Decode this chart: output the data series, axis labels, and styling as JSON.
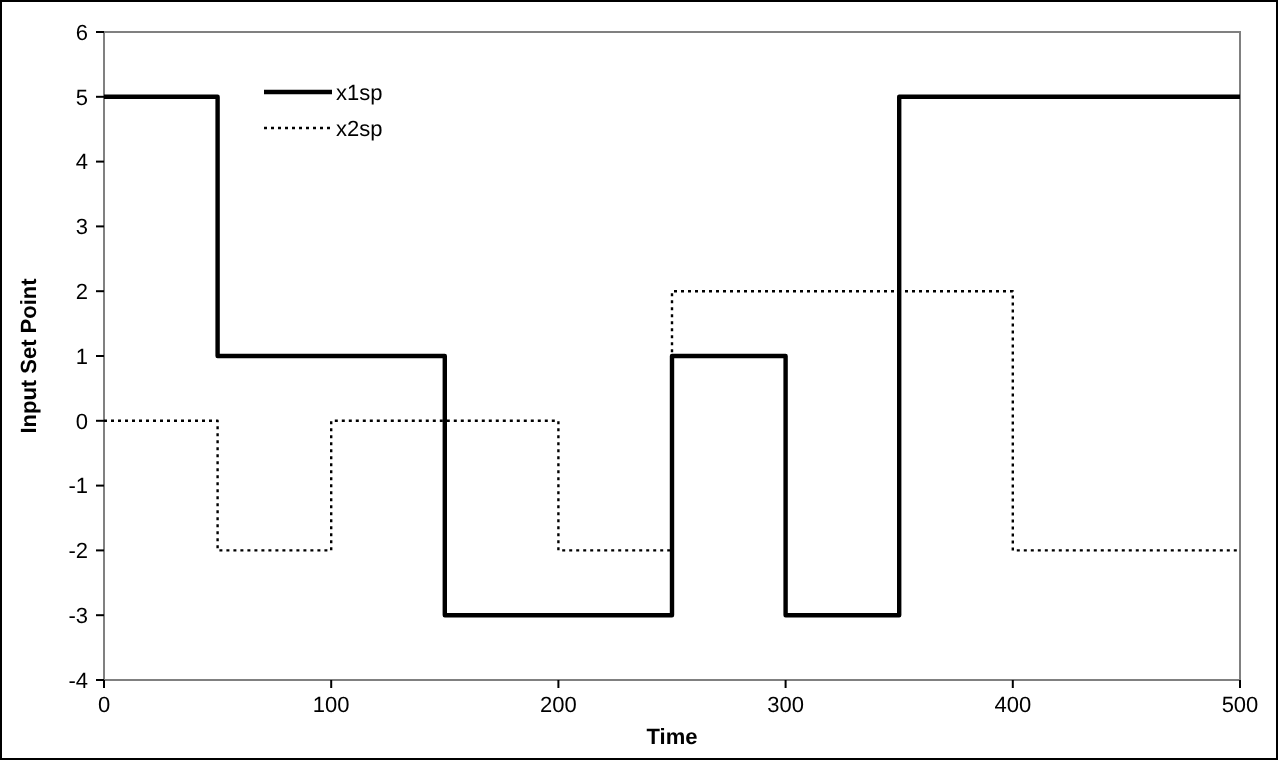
{
  "chart_data": {
    "type": "step",
    "xlabel": "Time",
    "ylabel": "Input Set Point",
    "xlim": [
      0,
      500
    ],
    "xticks": [
      0,
      100,
      200,
      300,
      400,
      500
    ],
    "ylim": [
      -4,
      6
    ],
    "yticks": [
      -4,
      -3,
      -2,
      -1,
      0,
      1,
      2,
      3,
      4,
      5,
      6
    ],
    "grid": false,
    "legend": "top left",
    "marker": "none",
    "series": [
      {
        "name": "x1sp",
        "color": "#000000",
        "line_style": "solid",
        "x": [
          0,
          50,
          150,
          250,
          300,
          350,
          500
        ],
        "values": [
          5,
          1,
          -3,
          1,
          -3,
          5,
          5
        ]
      },
      {
        "name": "x2sp",
        "color": "#000000",
        "line_style": "dotted",
        "x": [
          0,
          50,
          100,
          200,
          250,
          400,
          500
        ],
        "values": [
          0,
          -2,
          0,
          -2,
          2,
          -2,
          -2
        ]
      }
    ]
  }
}
